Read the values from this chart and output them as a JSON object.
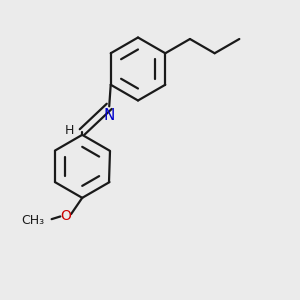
{
  "background_color": "#ebebeb",
  "bond_color": "#1a1a1a",
  "N_color": "#0000cc",
  "O_color": "#cc0000",
  "line_width": 1.6,
  "font_size": 10,
  "figsize": [
    3.0,
    3.0
  ],
  "dpi": 100,
  "xlim": [
    0,
    10
  ],
  "ylim": [
    0,
    10
  ]
}
